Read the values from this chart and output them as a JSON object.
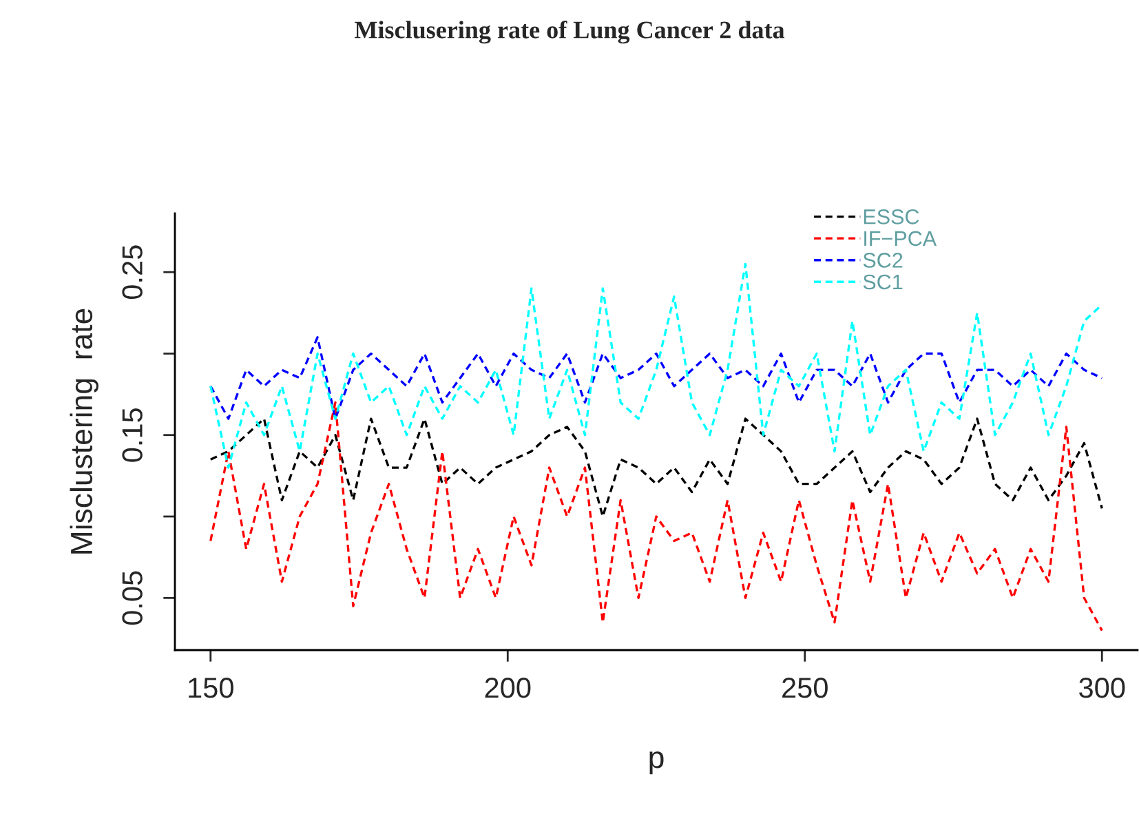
{
  "chart_data": {
    "type": "line",
    "title": "Misclusering rate of Lung Cancer 2 data",
    "xlabel": "p",
    "ylabel": "Misclustering  rate",
    "x": [
      150,
      153,
      156,
      159,
      162,
      165,
      168,
      171,
      174,
      177,
      180,
      183,
      186,
      189,
      192,
      195,
      198,
      201,
      204,
      207,
      210,
      213,
      216,
      219,
      222,
      225,
      228,
      231,
      234,
      237,
      240,
      243,
      246,
      249,
      252,
      255,
      258,
      261,
      264,
      267,
      270,
      273,
      276,
      279,
      282,
      285,
      288,
      291,
      294,
      297,
      300
    ],
    "series": [
      {
        "name": "ESSC",
        "color": "#000000",
        "values": [
          0.135,
          0.14,
          0.15,
          0.16,
          0.11,
          0.14,
          0.13,
          0.15,
          0.11,
          0.16,
          0.13,
          0.13,
          0.16,
          0.12,
          0.13,
          0.12,
          0.13,
          0.135,
          0.14,
          0.15,
          0.155,
          0.14,
          0.1,
          0.135,
          0.13,
          0.12,
          0.13,
          0.115,
          0.135,
          0.12,
          0.16,
          0.15,
          0.14,
          0.12,
          0.12,
          0.13,
          0.14,
          0.115,
          0.13,
          0.14,
          0.135,
          0.12,
          0.13,
          0.16,
          0.12,
          0.11,
          0.13,
          0.11,
          0.125,
          0.145,
          0.105
        ]
      },
      {
        "name": "IF−PCA",
        "color": "#ff0000",
        "values": [
          0.085,
          0.14,
          0.08,
          0.12,
          0.06,
          0.1,
          0.12,
          0.17,
          0.045,
          0.09,
          0.12,
          0.08,
          0.05,
          0.14,
          0.05,
          0.08,
          0.05,
          0.1,
          0.07,
          0.13,
          0.1,
          0.13,
          0.035,
          0.11,
          0.05,
          0.1,
          0.085,
          0.09,
          0.06,
          0.11,
          0.05,
          0.09,
          0.06,
          0.11,
          0.07,
          0.035,
          0.11,
          0.06,
          0.12,
          0.05,
          0.09,
          0.06,
          0.09,
          0.065,
          0.08,
          0.05,
          0.08,
          0.06,
          0.155,
          0.05,
          0.03
        ]
      },
      {
        "name": "SC2",
        "color": "#0000ff",
        "values": [
          0.18,
          0.16,
          0.19,
          0.18,
          0.19,
          0.185,
          0.21,
          0.16,
          0.19,
          0.2,
          0.19,
          0.18,
          0.2,
          0.17,
          0.185,
          0.2,
          0.18,
          0.2,
          0.19,
          0.185,
          0.2,
          0.17,
          0.2,
          0.185,
          0.19,
          0.2,
          0.18,
          0.19,
          0.2,
          0.185,
          0.19,
          0.18,
          0.2,
          0.17,
          0.19,
          0.19,
          0.18,
          0.2,
          0.17,
          0.19,
          0.2,
          0.2,
          0.17,
          0.19,
          0.19,
          0.18,
          0.19,
          0.18,
          0.2,
          0.19,
          0.185
        ]
      },
      {
        "name": "SC1",
        "color": "#00ffff",
        "values": [
          0.18,
          0.13,
          0.17,
          0.15,
          0.18,
          0.14,
          0.2,
          0.16,
          0.2,
          0.17,
          0.18,
          0.15,
          0.18,
          0.16,
          0.18,
          0.17,
          0.19,
          0.15,
          0.24,
          0.16,
          0.19,
          0.15,
          0.24,
          0.17,
          0.16,
          0.19,
          0.235,
          0.17,
          0.15,
          0.19,
          0.255,
          0.15,
          0.19,
          0.18,
          0.2,
          0.14,
          0.22,
          0.15,
          0.18,
          0.19,
          0.14,
          0.17,
          0.16,
          0.225,
          0.15,
          0.17,
          0.2,
          0.15,
          0.18,
          0.22,
          0.23
        ]
      }
    ],
    "xlim": [
      144,
      306
    ],
    "ylim": [
      0.018,
      0.286
    ],
    "xticks": [
      150,
      200,
      250,
      300
    ],
    "yticks": [
      0.05,
      {
        "value": 0.1,
        "label": null
      },
      0.15,
      {
        "value": 0.2,
        "label": null
      },
      0.25
    ],
    "legend": "top right",
    "grid": false,
    "line_style": "dashed",
    "marker": "none"
  }
}
